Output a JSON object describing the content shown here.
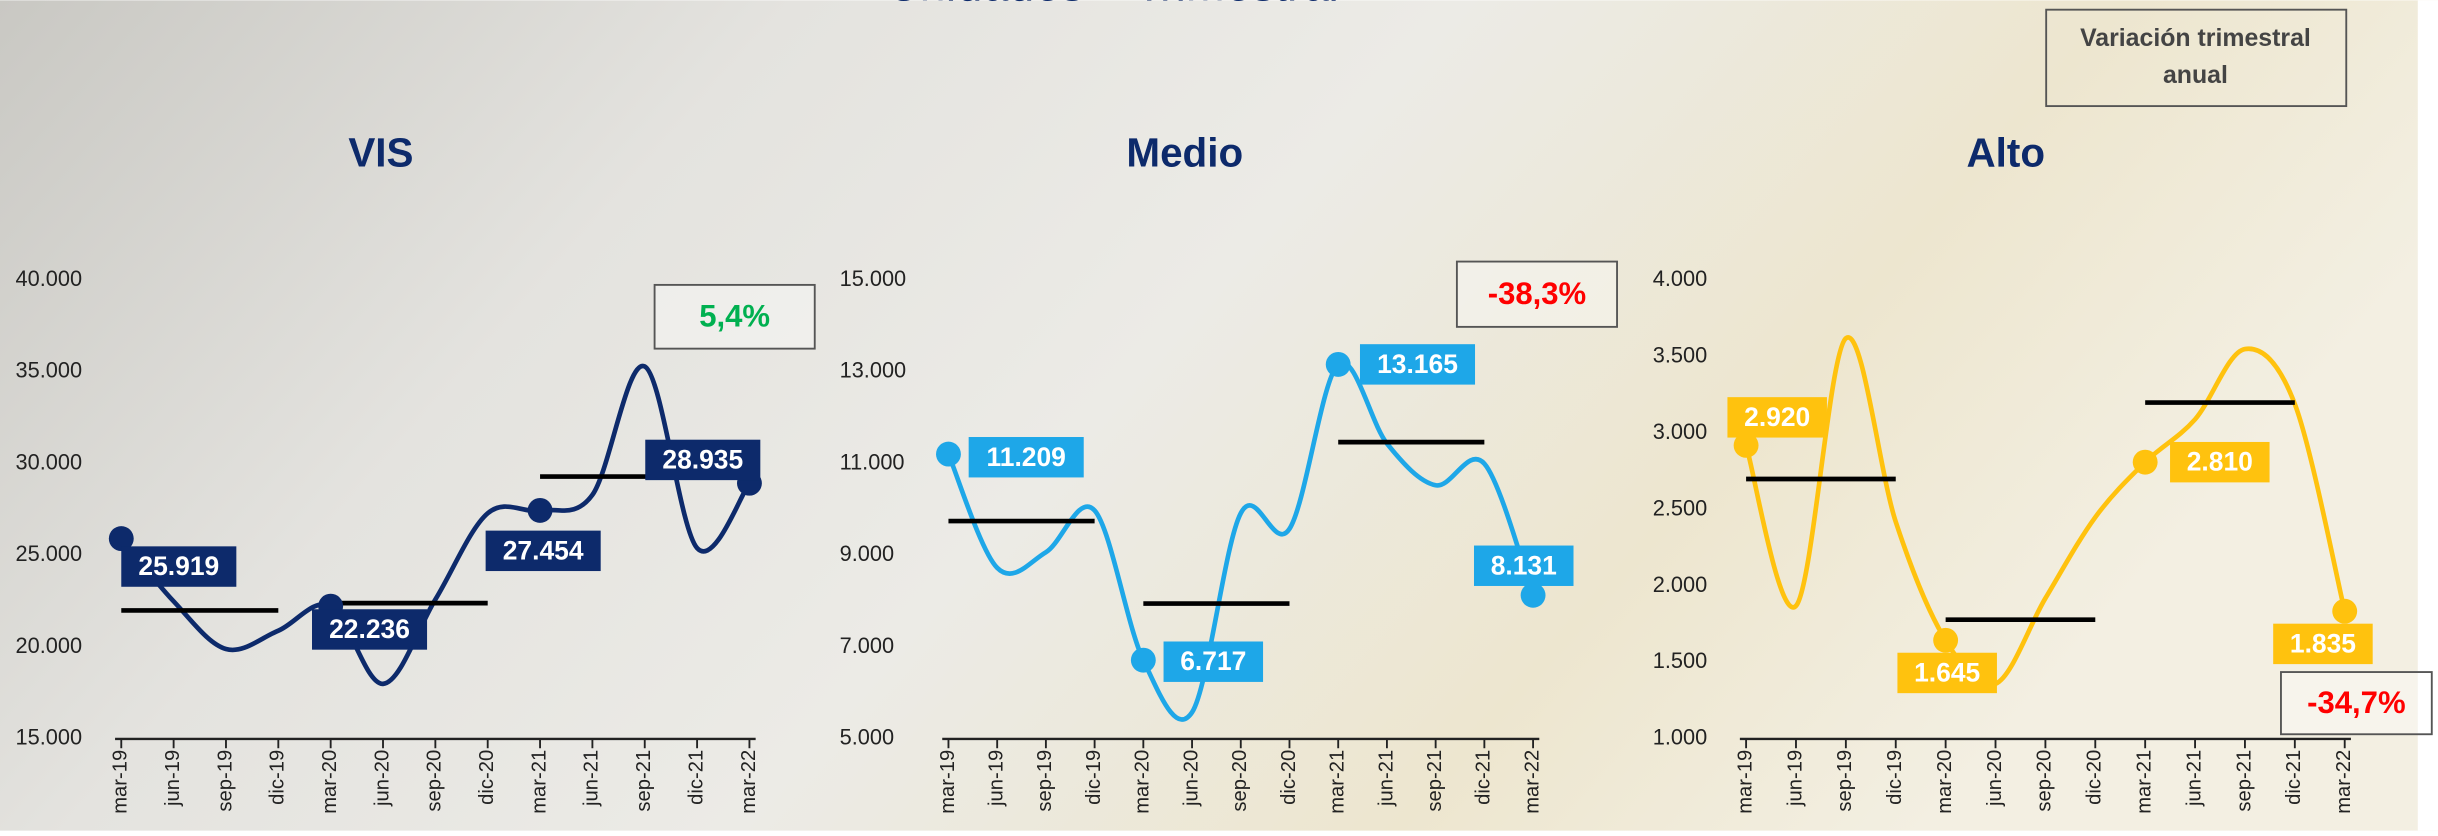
{
  "page_title": "Unidades – Trimestral",
  "variation_note": [
    "Variación trimestral",
    "anual"
  ],
  "chart_data": [
    {
      "type": "line",
      "title": "VIS",
      "color": "#0d2a6b",
      "categories": [
        "mar-19",
        "jun-19",
        "sep-19",
        "dic-19",
        "mar-20",
        "jun-20",
        "sep-20",
        "dic-20",
        "mar-21",
        "jun-21",
        "sep-21",
        "dic-21",
        "mar-22"
      ],
      "values": [
        25919,
        22500,
        19900,
        20900,
        22236,
        18000,
        22600,
        27300,
        27454,
        28300,
        35300,
        25400,
        28935
      ],
      "value_labels": [
        "25.919",
        null,
        null,
        null,
        "22.236",
        null,
        null,
        null,
        "27.454",
        null,
        null,
        null,
        "28.935"
      ],
      "annual_averages": [
        22000,
        22400,
        29300
      ],
      "variation": "5,4%",
      "variation_color": "#00b050",
      "ylim": [
        15000,
        40000
      ],
      "yticks": [
        {
          "value": 15000,
          "label": "15.000"
        },
        {
          "value": 20000,
          "label": "20.000"
        },
        {
          "value": 25000,
          "label": "25.000"
        },
        {
          "value": 30000,
          "label": "30.000"
        },
        {
          "value": 35000,
          "label": "35.000"
        },
        {
          "value": 40000,
          "label": "40.000"
        }
      ]
    },
    {
      "type": "line",
      "title": "Medio",
      "color": "#1ea7e8",
      "categories": [
        "mar-19",
        "jun-19",
        "sep-19",
        "dic-19",
        "mar-20",
        "jun-20",
        "sep-20",
        "dic-20",
        "mar-21",
        "jun-21",
        "sep-21",
        "dic-21",
        "mar-22"
      ],
      "values": [
        11209,
        8730,
        9070,
        9980,
        6717,
        5580,
        9920,
        9580,
        13165,
        11440,
        10530,
        11000,
        8131
      ],
      "value_labels": [
        "11.209",
        null,
        null,
        null,
        "6.717",
        null,
        null,
        null,
        "13.165",
        null,
        null,
        null,
        "8.131"
      ],
      "annual_averages": [
        9750,
        7950,
        11470
      ],
      "variation": "-38,3%",
      "variation_color": "#ff0000",
      "ylim": [
        5000,
        15000
      ],
      "yticks": [
        {
          "value": 5000,
          "label": "5.000"
        },
        {
          "value": 7000,
          "label": "7.000"
        },
        {
          "value": 9000,
          "label": "9.000"
        },
        {
          "value": 11000,
          "label": "11.000"
        },
        {
          "value": 13000,
          "label": "13.000"
        },
        {
          "value": 15000,
          "label": "15.000"
        }
      ]
    },
    {
      "type": "line",
      "title": "Alto",
      "color": "#ffc20e",
      "categories": [
        "mar-19",
        "jun-19",
        "sep-19",
        "dic-19",
        "mar-20",
        "jun-20",
        "sep-20",
        "dic-20",
        "mar-21",
        "jun-21",
        "sep-21",
        "dic-21",
        "mar-22"
      ],
      "values": [
        2920,
        1870,
        3620,
        2420,
        1645,
        1360,
        1920,
        2450,
        2810,
        3090,
        3550,
        3190,
        1835
      ],
      "value_labels": [
        "2.920",
        null,
        null,
        null,
        "1.645",
        null,
        null,
        null,
        "2.810",
        null,
        null,
        null,
        "1.835"
      ],
      "annual_averages": [
        2700,
        1780,
        3200
      ],
      "variation": "-34,7%",
      "variation_color": "#ff0000",
      "ylim": [
        1000,
        4000
      ],
      "yticks": [
        {
          "value": 1000,
          "label": "1.000"
        },
        {
          "value": 1500,
          "label": "1.500"
        },
        {
          "value": 2000,
          "label": "2.000"
        },
        {
          "value": 2500,
          "label": "2.500"
        },
        {
          "value": 3000,
          "label": "3.000"
        },
        {
          "value": 3500,
          "label": "3.500"
        },
        {
          "value": 4000,
          "label": "4.000"
        }
      ]
    }
  ]
}
